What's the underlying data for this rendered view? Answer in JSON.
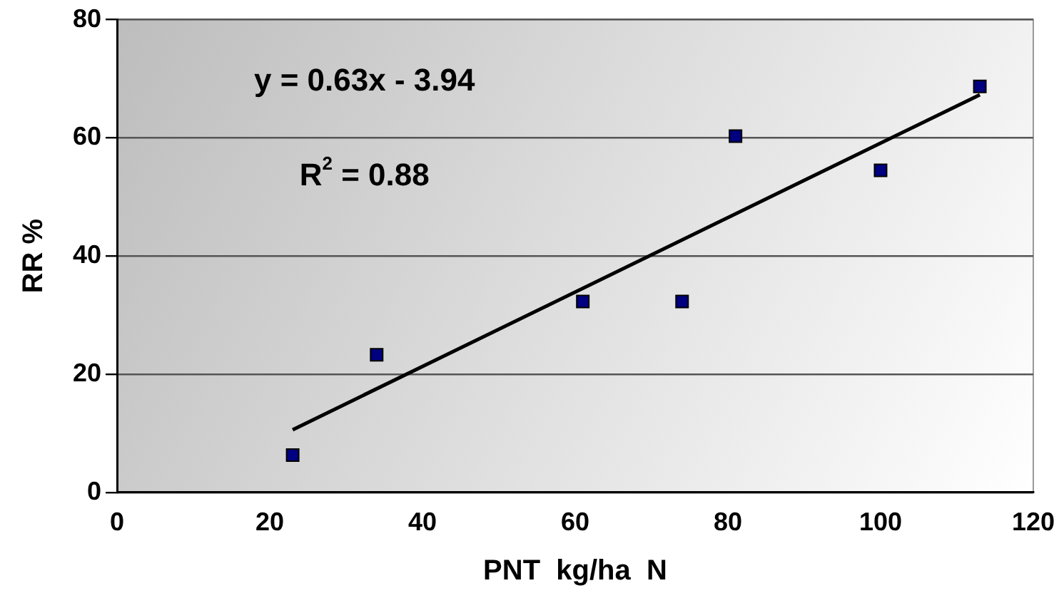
{
  "chart_data": {
    "type": "scatter",
    "xlabel": "PNT  kg/ha  N",
    "ylabel": "RR %",
    "xlim": [
      0,
      120
    ],
    "xticks": [
      0,
      20,
      40,
      60,
      80,
      100,
      120
    ],
    "ylim": [
      0,
      80
    ],
    "yticks": [
      0,
      20,
      40,
      60,
      80
    ],
    "grid": "y",
    "legend": false,
    "marker": "square",
    "series": [
      {
        "color": "#000080",
        "x": [
          23,
          34,
          61,
          74,
          81,
          100,
          113
        ],
        "values": [
          6.3,
          23.3,
          32.3,
          32.3,
          60.3,
          54.5,
          68.7
        ]
      },
      {
        "type": "line",
        "color": "#000000",
        "marker": "none",
        "line_style": "solid",
        "x": [
          23,
          113
        ],
        "values": [
          10.6,
          67.3
        ]
      }
    ],
    "annotations": [
      "y = 0.63x - 3.94",
      "R$^{2}$ = 0.88"
    ]
  }
}
